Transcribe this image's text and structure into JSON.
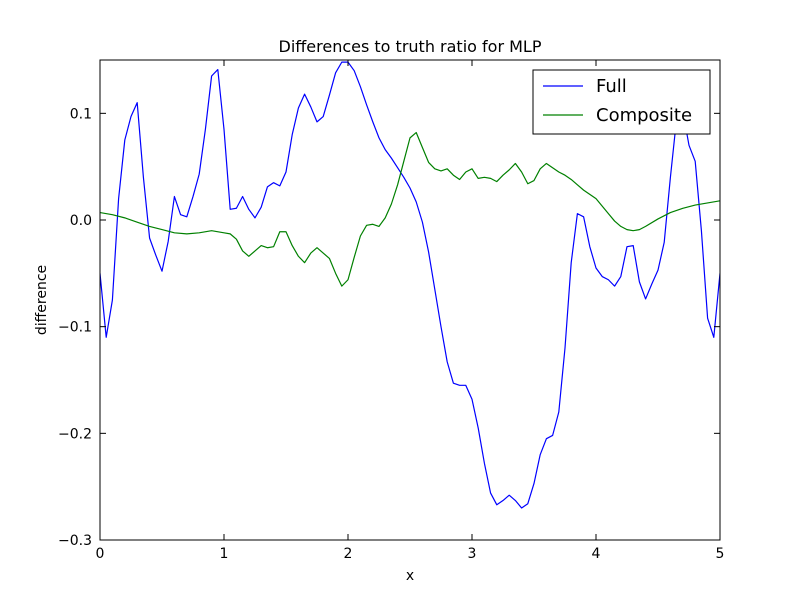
{
  "chart_data": {
    "type": "line",
    "title": "Differences to truth ratio for MLP",
    "xlabel": "x",
    "ylabel": "difference",
    "xlim": [
      0,
      5
    ],
    "ylim": [
      -0.3,
      0.15
    ],
    "xticks": [
      0,
      1,
      2,
      3,
      4,
      5
    ],
    "xtick_labels": [
      "0",
      "1",
      "2",
      "3",
      "4",
      "5"
    ],
    "yticks": [
      -0.3,
      -0.2,
      -0.1,
      0.0,
      0.1
    ],
    "ytick_labels": [
      "−0.3",
      "−0.2",
      "−0.1",
      "0.0",
      "0.1"
    ],
    "grid": false,
    "legend_position": "top-right",
    "series": [
      {
        "name": "Full",
        "color": "#0000ff",
        "points": [
          [
            0.0,
            -0.05
          ],
          [
            0.05,
            -0.11
          ],
          [
            0.1,
            -0.075
          ],
          [
            0.15,
            0.02
          ],
          [
            0.2,
            0.075
          ],
          [
            0.25,
            0.097
          ],
          [
            0.3,
            0.11
          ],
          [
            0.35,
            0.04
          ],
          [
            0.4,
            -0.017
          ],
          [
            0.45,
            -0.033
          ],
          [
            0.5,
            -0.048
          ],
          [
            0.55,
            -0.02
          ],
          [
            0.6,
            0.022
          ],
          [
            0.65,
            0.005
          ],
          [
            0.7,
            0.003
          ],
          [
            0.75,
            0.022
          ],
          [
            0.8,
            0.043
          ],
          [
            0.85,
            0.085
          ],
          [
            0.9,
            0.135
          ],
          [
            0.95,
            0.141
          ],
          [
            1.0,
            0.085
          ],
          [
            1.05,
            0.01
          ],
          [
            1.1,
            0.011
          ],
          [
            1.15,
            0.022
          ],
          [
            1.2,
            0.01
          ],
          [
            1.25,
            0.002
          ],
          [
            1.3,
            0.012
          ],
          [
            1.35,
            0.031
          ],
          [
            1.4,
            0.035
          ],
          [
            1.45,
            0.032
          ],
          [
            1.5,
            0.045
          ],
          [
            1.55,
            0.08
          ],
          [
            1.6,
            0.105
          ],
          [
            1.65,
            0.118
          ],
          [
            1.7,
            0.106
          ],
          [
            1.75,
            0.092
          ],
          [
            1.8,
            0.097
          ],
          [
            1.85,
            0.117
          ],
          [
            1.9,
            0.138
          ],
          [
            1.95,
            0.148
          ],
          [
            2.0,
            0.148
          ],
          [
            2.05,
            0.14
          ],
          [
            2.1,
            0.125
          ],
          [
            2.15,
            0.108
          ],
          [
            2.2,
            0.092
          ],
          [
            2.25,
            0.077
          ],
          [
            2.3,
            0.066
          ],
          [
            2.35,
            0.058
          ],
          [
            2.4,
            0.049
          ],
          [
            2.45,
            0.04
          ],
          [
            2.5,
            0.03
          ],
          [
            2.55,
            0.017
          ],
          [
            2.6,
            -0.002
          ],
          [
            2.65,
            -0.03
          ],
          [
            2.7,
            -0.065
          ],
          [
            2.75,
            -0.1
          ],
          [
            2.8,
            -0.133
          ],
          [
            2.85,
            -0.153
          ],
          [
            2.9,
            -0.155
          ],
          [
            2.95,
            -0.155
          ],
          [
            3.0,
            -0.168
          ],
          [
            3.05,
            -0.195
          ],
          [
            3.1,
            -0.228
          ],
          [
            3.15,
            -0.256
          ],
          [
            3.2,
            -0.267
          ],
          [
            3.25,
            -0.263
          ],
          [
            3.3,
            -0.258
          ],
          [
            3.35,
            -0.263
          ],
          [
            3.4,
            -0.27
          ],
          [
            3.45,
            -0.266
          ],
          [
            3.5,
            -0.247
          ],
          [
            3.55,
            -0.22
          ],
          [
            3.6,
            -0.205
          ],
          [
            3.65,
            -0.202
          ],
          [
            3.7,
            -0.18
          ],
          [
            3.75,
            -0.12
          ],
          [
            3.8,
            -0.04
          ],
          [
            3.85,
            0.006
          ],
          [
            3.9,
            0.003
          ],
          [
            3.95,
            -0.025
          ],
          [
            4.0,
            -0.045
          ],
          [
            4.05,
            -0.053
          ],
          [
            4.1,
            -0.056
          ],
          [
            4.15,
            -0.062
          ],
          [
            4.2,
            -0.053
          ],
          [
            4.25,
            -0.025
          ],
          [
            4.3,
            -0.024
          ],
          [
            4.35,
            -0.058
          ],
          [
            4.4,
            -0.074
          ],
          [
            4.45,
            -0.06
          ],
          [
            4.5,
            -0.047
          ],
          [
            4.55,
            -0.021
          ],
          [
            4.6,
            0.04
          ],
          [
            4.65,
            0.095
          ],
          [
            4.7,
            0.102
          ],
          [
            4.75,
            0.07
          ],
          [
            4.8,
            0.055
          ],
          [
            4.85,
            -0.01
          ],
          [
            4.9,
            -0.092
          ],
          [
            4.95,
            -0.11
          ],
          [
            5.0,
            -0.05
          ]
        ]
      },
      {
        "name": "Composite",
        "color": "#008000",
        "points": [
          [
            0.0,
            0.007
          ],
          [
            0.1,
            0.005
          ],
          [
            0.2,
            0.002
          ],
          [
            0.3,
            -0.002
          ],
          [
            0.4,
            -0.006
          ],
          [
            0.5,
            -0.009
          ],
          [
            0.6,
            -0.012
          ],
          [
            0.7,
            -0.013
          ],
          [
            0.8,
            -0.012
          ],
          [
            0.9,
            -0.01
          ],
          [
            1.0,
            -0.012
          ],
          [
            1.05,
            -0.013
          ],
          [
            1.1,
            -0.018
          ],
          [
            1.15,
            -0.029
          ],
          [
            1.2,
            -0.034
          ],
          [
            1.25,
            -0.029
          ],
          [
            1.3,
            -0.024
          ],
          [
            1.35,
            -0.026
          ],
          [
            1.4,
            -0.025
          ],
          [
            1.45,
            -0.011
          ],
          [
            1.5,
            -0.011
          ],
          [
            1.55,
            -0.024
          ],
          [
            1.6,
            -0.034
          ],
          [
            1.65,
            -0.04
          ],
          [
            1.7,
            -0.031
          ],
          [
            1.75,
            -0.026
          ],
          [
            1.8,
            -0.031
          ],
          [
            1.85,
            -0.036
          ],
          [
            1.9,
            -0.05
          ],
          [
            1.95,
            -0.062
          ],
          [
            2.0,
            -0.056
          ],
          [
            2.05,
            -0.035
          ],
          [
            2.1,
            -0.015
          ],
          [
            2.15,
            -0.005
          ],
          [
            2.2,
            -0.004
          ],
          [
            2.25,
            -0.006
          ],
          [
            2.3,
            0.002
          ],
          [
            2.35,
            0.015
          ],
          [
            2.4,
            0.033
          ],
          [
            2.45,
            0.055
          ],
          [
            2.5,
            0.077
          ],
          [
            2.55,
            0.082
          ],
          [
            2.6,
            0.068
          ],
          [
            2.65,
            0.054
          ],
          [
            2.7,
            0.048
          ],
          [
            2.75,
            0.046
          ],
          [
            2.8,
            0.048
          ],
          [
            2.85,
            0.042
          ],
          [
            2.9,
            0.038
          ],
          [
            2.95,
            0.045
          ],
          [
            3.0,
            0.048
          ],
          [
            3.05,
            0.039
          ],
          [
            3.1,
            0.04
          ],
          [
            3.15,
            0.039
          ],
          [
            3.2,
            0.036
          ],
          [
            3.25,
            0.042
          ],
          [
            3.3,
            0.047
          ],
          [
            3.35,
            0.053
          ],
          [
            3.4,
            0.045
          ],
          [
            3.45,
            0.034
          ],
          [
            3.5,
            0.037
          ],
          [
            3.55,
            0.048
          ],
          [
            3.6,
            0.053
          ],
          [
            3.65,
            0.049
          ],
          [
            3.7,
            0.045
          ],
          [
            3.75,
            0.042
          ],
          [
            3.8,
            0.038
          ],
          [
            3.85,
            0.033
          ],
          [
            3.9,
            0.028
          ],
          [
            3.95,
            0.024
          ],
          [
            4.0,
            0.02
          ],
          [
            4.05,
            0.013
          ],
          [
            4.1,
            0.006
          ],
          [
            4.15,
            -0.001
          ],
          [
            4.2,
            -0.006
          ],
          [
            4.25,
            -0.009
          ],
          [
            4.3,
            -0.01
          ],
          [
            4.35,
            -0.009
          ],
          [
            4.4,
            -0.006
          ],
          [
            4.5,
            0.001
          ],
          [
            4.6,
            0.007
          ],
          [
            4.7,
            0.011
          ],
          [
            4.8,
            0.014
          ],
          [
            4.9,
            0.016
          ],
          [
            5.0,
            0.018
          ]
        ]
      }
    ]
  }
}
